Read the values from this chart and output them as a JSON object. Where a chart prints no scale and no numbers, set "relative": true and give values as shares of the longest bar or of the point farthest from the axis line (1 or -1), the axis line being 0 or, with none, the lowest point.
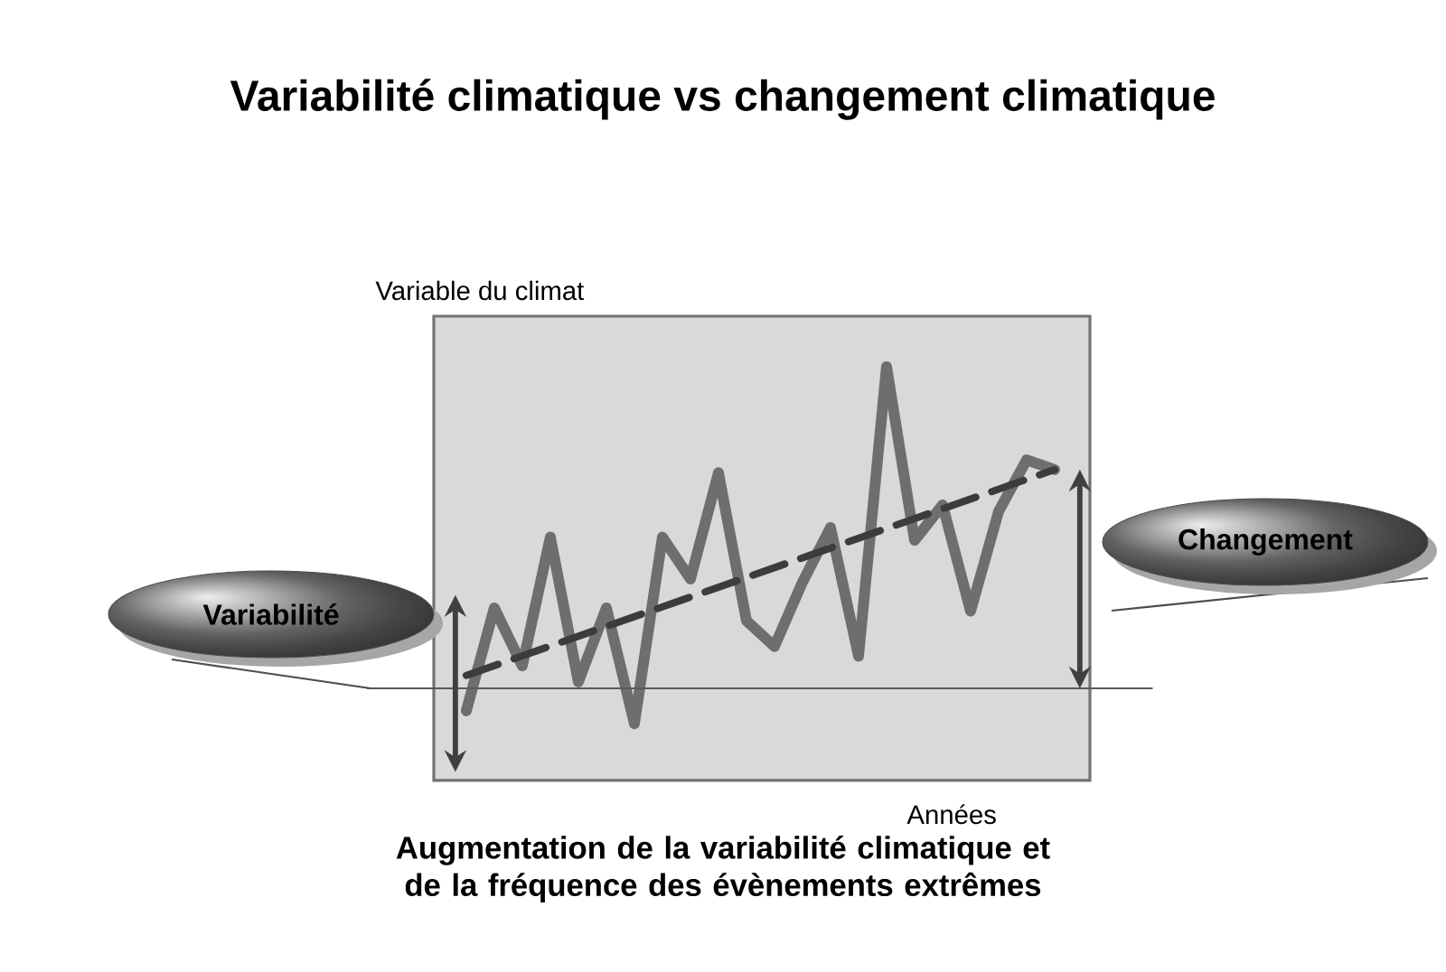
{
  "chart_data": {
    "type": "line",
    "title": "Variabilité climatique vs changement climatique",
    "ylabel": "Variable du climat",
    "xlabel": "Années",
    "relative": true,
    "marker": "none",
    "categories": [
      null,
      null,
      null,
      null,
      null,
      null,
      null,
      null,
      null,
      null,
      null,
      null,
      null,
      null,
      null,
      null,
      null,
      null,
      null,
      null,
      null,
      null
    ],
    "series": [
      {
        "color": "#6e6e6e",
        "line_style": "solid",
        "values": [
          -0.07,
          0.25,
          0.07,
          0.47,
          0.02,
          0.25,
          -0.11,
          0.47,
          0.34,
          0.67,
          0.21,
          0.13,
          0.33,
          0.5,
          0.1,
          1,
          0.46,
          0.57,
          0.24,
          0.55,
          0.71,
          0.68
        ]
      },
      {
        "color": "#3c3c3c",
        "line_style": "dashed",
        "values": [
          0.04,
          null,
          null,
          null,
          null,
          null,
          null,
          null,
          null,
          null,
          null,
          null,
          null,
          null,
          null,
          null,
          null,
          null,
          null,
          null,
          null,
          0.68
        ]
      }
    ],
    "annotations": [
      "Variabilité",
      "Changement",
      "Augmentation de la variabilité climatique et de la fréquence des évènements extrêmes"
    ]
  }
}
